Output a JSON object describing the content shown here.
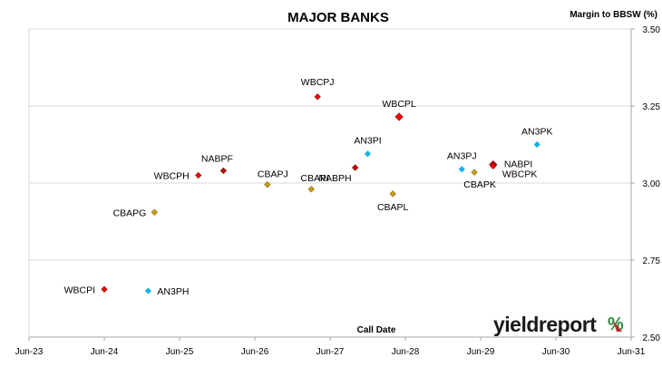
{
  "chart_data": {
    "type": "scatter",
    "title": "MAJOR BANKS",
    "xlabel": "Call Date",
    "ylabel": "Margin to BBSW (%)",
    "x_ticks": [
      "Jun-23",
      "Jun-24",
      "Jun-25",
      "Jun-26",
      "Jun-27",
      "Jun-28",
      "Jun-29",
      "Jun-30",
      "Jun-31"
    ],
    "y_ticks": [
      "2.50",
      "2.75",
      "3.00",
      "3.25",
      "3.50"
    ],
    "xlim": [
      "Jun-23",
      "Jun-31"
    ],
    "ylim": [
      2.5,
      3.5
    ],
    "grid": "horizontal",
    "y_axis_side": "right",
    "points": [
      {
        "label": "WBCPJ",
        "x": "2027-04",
        "y": 3.28,
        "color": "#ff0000"
      },
      {
        "label": "WBCPL",
        "x": "2028-05",
        "y": 3.215,
        "color": "#ff0000"
      },
      {
        "label": "AN3PK",
        "x": "2030-03",
        "y": 3.125,
        "color": "#1ab0e8"
      },
      {
        "label": "AN3PI",
        "x": "2027-12",
        "y": 3.095,
        "color": "#1ab0e8"
      },
      {
        "label": "AN3PJ",
        "x": "2029-03",
        "y": 3.045,
        "color": "#1ab0e8"
      },
      {
        "label": "NABPI",
        "x": "2029-08",
        "y": 3.06,
        "color": "#c00000"
      },
      {
        "label": "WBCPK",
        "x": "2029-08",
        "y": 3.055,
        "color": "#ff0000"
      },
      {
        "label": "CBAPK",
        "x": "2029-05",
        "y": 3.035,
        "color": "#d4a017"
      },
      {
        "label": "NABPH",
        "x": "2027-10",
        "y": 3.05,
        "color": "#c00000"
      },
      {
        "label": "NABPF",
        "x": "2026-01",
        "y": 3.04,
        "color": "#c00000"
      },
      {
        "label": "WBCPH",
        "x": "2025-09",
        "y": 3.025,
        "color": "#ff0000"
      },
      {
        "label": "CBAPJ",
        "x": "2026-08",
        "y": 2.995,
        "color": "#d4a017"
      },
      {
        "label": "CBAPI",
        "x": "2027-03",
        "y": 2.98,
        "color": "#d4a017"
      },
      {
        "label": "CBAPL",
        "x": "2028-04",
        "y": 2.965,
        "color": "#d4a017"
      },
      {
        "label": "CBAPG",
        "x": "2025-02",
        "y": 2.905,
        "color": "#d4a017"
      },
      {
        "label": "WBCPI",
        "x": "2024-06",
        "y": 2.655,
        "color": "#ff0000"
      },
      {
        "label": "AN3PH",
        "x": "2025-01",
        "y": 2.65,
        "color": "#1ab0e8"
      }
    ]
  },
  "logo": {
    "text": "yieldreport",
    "symbol": "%"
  }
}
